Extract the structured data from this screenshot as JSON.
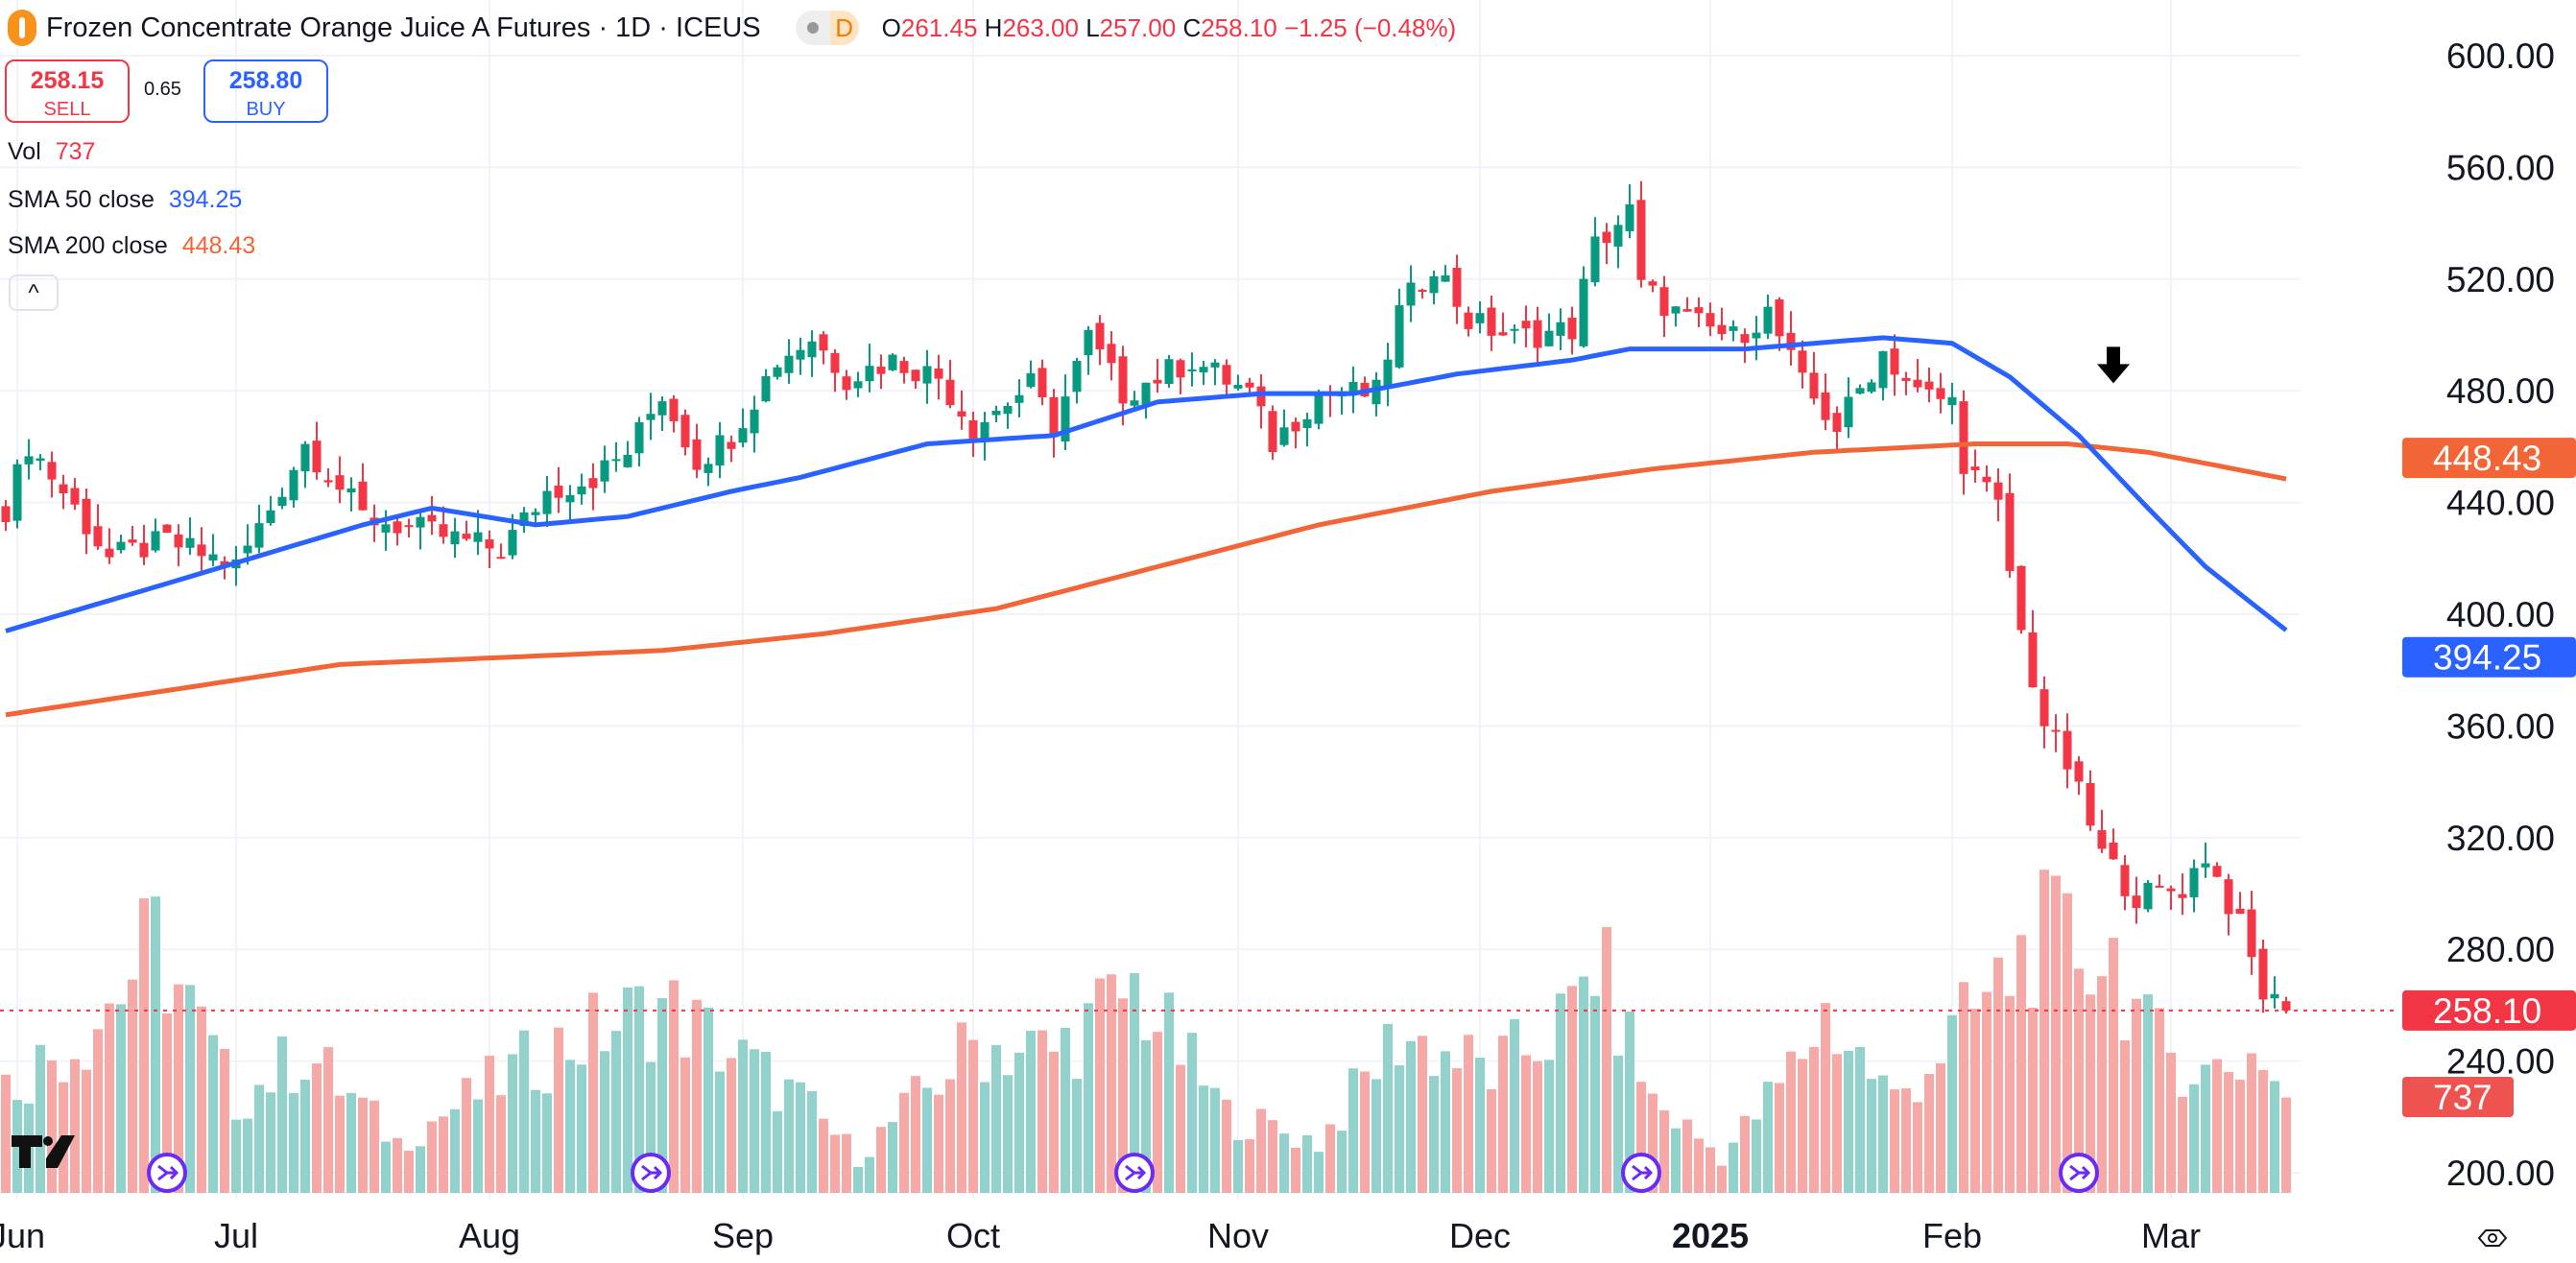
{
  "header": {
    "title": "Frozen Concentrate Orange Juice A Futures · 1D · ICEUS",
    "session_badge": "D",
    "ohlc": {
      "o_label": "O",
      "o": "261.45",
      "h_label": "H",
      "h": "263.00",
      "l_label": "L",
      "l": "257.00",
      "c_label": "C",
      "c": "258.10",
      "change": "−1.25 (−0.48%)"
    }
  },
  "trade": {
    "sell_price": "258.15",
    "sell_label": "SELL",
    "spread": "0.65",
    "buy_price": "258.80",
    "buy_label": "BUY"
  },
  "legend": {
    "vol_label": "Vol",
    "vol_value": "737",
    "sma50_label": "SMA 50 close",
    "sma50_value": "394.25",
    "sma200_label": "SMA 200 close",
    "sma200_value": "448.43",
    "collapse": "^"
  },
  "colors": {
    "up": "#089981",
    "down": "#f23645",
    "vol_up": "#92d2cc",
    "vol_down": "#f7a9a7",
    "sma50": "#2962ff",
    "sma200": "#f26536",
    "grid": "#f0f3fa"
  },
  "chart_data": {
    "type": "candlestick",
    "bars": 199,
    "ylim": [
      200,
      600
    ],
    "y_ticks": [
      "600.00",
      "560.00",
      "520.00",
      "480.00",
      "440.00",
      "400.00",
      "360.00",
      "320.00",
      "280.00",
      "240.00",
      "200.00"
    ],
    "x_ticks": [
      {
        "i": 1,
        "label": "Jun"
      },
      {
        "i": 20,
        "label": "Jul"
      },
      {
        "i": 42,
        "label": "Aug"
      },
      {
        "i": 64,
        "label": "Sep"
      },
      {
        "i": 84,
        "label": "Oct"
      },
      {
        "i": 107,
        "label": "Nov"
      },
      {
        "i": 128,
        "label": "Dec"
      },
      {
        "i": 148,
        "label": "2025"
      },
      {
        "i": 169,
        "label": "Feb"
      },
      {
        "i": 188,
        "label": "Mar"
      }
    ],
    "close_keypoints": [
      [
        0,
        438
      ],
      [
        2,
        461
      ],
      [
        6,
        438
      ],
      [
        9,
        420
      ],
      [
        14,
        426
      ],
      [
        20,
        417
      ],
      [
        23,
        438
      ],
      [
        26,
        461
      ],
      [
        31,
        435
      ],
      [
        37,
        429
      ],
      [
        43,
        423
      ],
      [
        47,
        444
      ],
      [
        51,
        449
      ],
      [
        54,
        458
      ],
      [
        57,
        479
      ],
      [
        60,
        455
      ],
      [
        63,
        464
      ],
      [
        67,
        491
      ],
      [
        70,
        499
      ],
      [
        73,
        485
      ],
      [
        77,
        491
      ],
      [
        81,
        485
      ],
      [
        84,
        467
      ],
      [
        89,
        482
      ],
      [
        91,
        467
      ],
      [
        94,
        499
      ],
      [
        97,
        479
      ],
      [
        103,
        491
      ],
      [
        108,
        479
      ],
      [
        110,
        461
      ],
      [
        114,
        479
      ],
      [
        119,
        479
      ],
      [
        121,
        508
      ],
      [
        124,
        526
      ],
      [
        127,
        505
      ],
      [
        131,
        499
      ],
      [
        136,
        502
      ],
      [
        138,
        532
      ],
      [
        141,
        544
      ],
      [
        142,
        517
      ],
      [
        146,
        505
      ],
      [
        150,
        499
      ],
      [
        153,
        508
      ],
      [
        156,
        482
      ],
      [
        159,
        467
      ],
      [
        163,
        494
      ],
      [
        166,
        479
      ],
      [
        169,
        476
      ],
      [
        170,
        455
      ],
      [
        173,
        438
      ],
      [
        175,
        393
      ],
      [
        177,
        361
      ],
      [
        179,
        346
      ],
      [
        182,
        314
      ],
      [
        185,
        299
      ],
      [
        189,
        302
      ],
      [
        191,
        314
      ],
      [
        194,
        288
      ],
      [
        196,
        264
      ],
      [
        198,
        258.1
      ]
    ],
    "last_bar": {
      "open": 261.45,
      "high": 263.0,
      "low": 257.0,
      "close": 258.1
    },
    "sma50_keypoints": [
      [
        0,
        394
      ],
      [
        14,
        411
      ],
      [
        31,
        432
      ],
      [
        37,
        438
      ],
      [
        46,
        432
      ],
      [
        54,
        435
      ],
      [
        63,
        444
      ],
      [
        69,
        449
      ],
      [
        80,
        461
      ],
      [
        91,
        464
      ],
      [
        100,
        476
      ],
      [
        109,
        479
      ],
      [
        117,
        479
      ],
      [
        126,
        486
      ],
      [
        136,
        491
      ],
      [
        141,
        495
      ],
      [
        151,
        495
      ],
      [
        163,
        499
      ],
      [
        169,
        497
      ],
      [
        174,
        485
      ],
      [
        180,
        464
      ],
      [
        186,
        438
      ],
      [
        191,
        417
      ],
      [
        198,
        394.25
      ]
    ],
    "sma200_keypoints": [
      [
        0,
        364
      ],
      [
        29,
        382
      ],
      [
        57,
        387
      ],
      [
        71,
        393
      ],
      [
        86,
        402
      ],
      [
        100,
        417
      ],
      [
        114,
        432
      ],
      [
        129,
        444
      ],
      [
        143,
        452
      ],
      [
        157,
        458
      ],
      [
        171,
        461
      ],
      [
        179,
        461
      ],
      [
        186,
        458
      ],
      [
        198,
        448.43
      ]
    ],
    "volume_keypoints": [
      [
        0,
        965
      ],
      [
        7,
        1470
      ],
      [
        13,
        2270
      ],
      [
        20,
        840
      ],
      [
        26,
        1280
      ],
      [
        34,
        460
      ],
      [
        47,
        1280
      ],
      [
        57,
        1700
      ],
      [
        69,
        840
      ],
      [
        74,
        330
      ],
      [
        84,
        1350
      ],
      [
        91,
        1280
      ],
      [
        98,
        1850
      ],
      [
        106,
        710
      ],
      [
        114,
        460
      ],
      [
        121,
        1450
      ],
      [
        129,
        1090
      ],
      [
        136,
        1600
      ],
      [
        138,
        2130
      ],
      [
        143,
        840
      ],
      [
        149,
        330
      ],
      [
        154,
        965
      ],
      [
        158,
        1625
      ],
      [
        164,
        840
      ],
      [
        169,
        1410
      ],
      [
        173,
        1850
      ],
      [
        176,
        2300
      ],
      [
        183,
        2170
      ],
      [
        186,
        1410
      ],
      [
        191,
        1090
      ],
      [
        196,
        1280
      ],
      [
        198,
        737
      ]
    ],
    "events": [
      14,
      56,
      98,
      142,
      180
    ],
    "arrow_marker": {
      "i": 183,
      "value": 482
    },
    "price_labels": {
      "sma200": "448.43",
      "sma50": "394.25",
      "last": "258.10",
      "volume": "737"
    }
  }
}
